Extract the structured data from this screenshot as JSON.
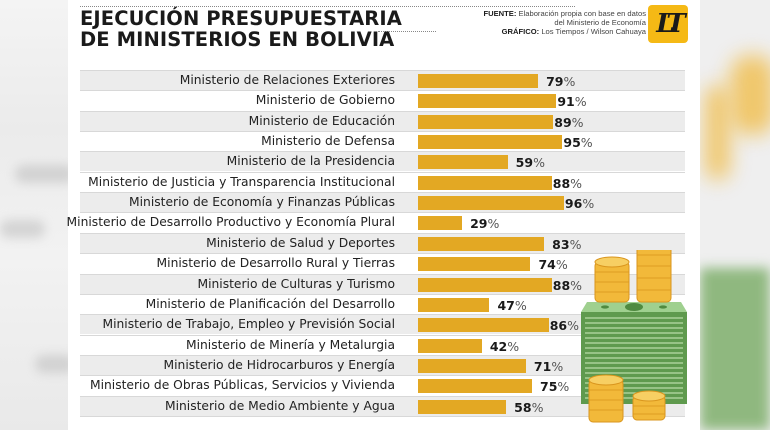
{
  "header": {
    "title_line1": "EJECUCIÓN PRESUPUESTARIA",
    "title_line2": "DE MINISTERIOS EN BOLIVIA",
    "source_label": "FUENTE:",
    "source_text_line1": "Elaboración propia con base en datos",
    "source_text_line2": "del Ministerio de Economía",
    "graphic_label": "GRÁFICO:",
    "graphic_text": "Los Tiempos / Wilson Cahuaya",
    "logo_text": "LT"
  },
  "colors": {
    "bar": "#e3a823",
    "logo_bg": "#f5b915",
    "stripe": "#ececec"
  },
  "chart_data": {
    "type": "bar",
    "orientation": "horizontal",
    "title": "EJECUCIÓN PRESUPUESTARIA DE MINISTERIOS EN BOLIVIA",
    "xlabel": "",
    "ylabel": "",
    "unit": "%",
    "xlim": [
      0,
      100
    ],
    "grid": false,
    "legend": "none",
    "categories": [
      "Ministerio de Relaciones Exteriores",
      "Ministerio de Gobierno",
      "Ministerio de Educación",
      "Ministerio de Defensa",
      "Ministerio de la Presidencia",
      "Ministerio de Justicia y Transparencia Institucional",
      "Ministerio de Economía y Finanzas Públicas",
      "Ministerio de Desarrollo Productivo y Economía Plural",
      "Ministerio de Salud y Deportes",
      "Ministerio de Desarrollo Rural y Tierras",
      "Ministerio de Culturas y Turismo",
      "Ministerio de Planificación del Desarrollo",
      "Ministerio de Trabajo, Empleo y Previsión Social",
      "Ministerio de Minería y Metalurgia",
      "Ministerio de Hidrocarburos y Energía",
      "Ministerio de Obras Públicas, Servicios y Vivienda",
      "Ministerio de Medio Ambiente y Agua"
    ],
    "values": [
      79,
      91,
      89,
      95,
      59,
      88,
      96,
      29,
      83,
      74,
      88,
      47,
      86,
      42,
      71,
      75,
      58
    ]
  }
}
